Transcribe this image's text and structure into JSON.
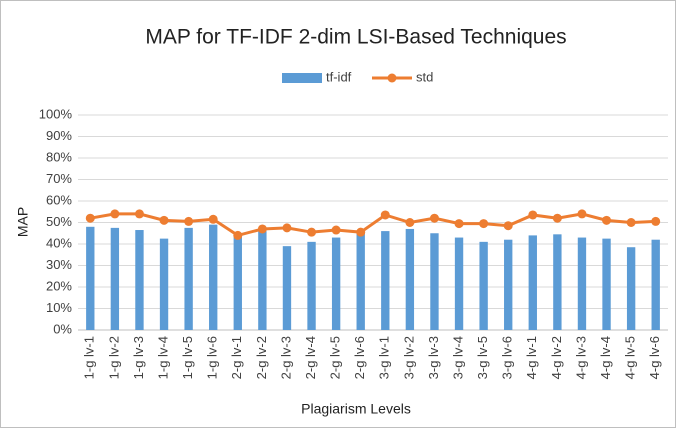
{
  "chart_data": {
    "type": "combo",
    "title": "MAP for TF-IDF 2-dim LSI-Based Techniques",
    "x_label": "Plagiarism Levels",
    "y_label": "MAP",
    "categories": [
      "1-g lv-1",
      "1-g lv-2",
      "1-g lv-3",
      "1-g lv-4",
      "1-g lv-5",
      "1-g lv-6",
      "2-g lv-1",
      "2-g lv-2",
      "2-g lv-3",
      "2-g lv-4",
      "2-g lv-5",
      "2-g lv-6",
      "3-g lv-1",
      "3-g lv-2",
      "3-g lv-3",
      "3-g lv-4",
      "3-g lv-5",
      "3-g lv-6",
      "4-g lv-1",
      "4-g lv-2",
      "4-g lv-3",
      "4-g lv-4",
      "4-g lv-5",
      "4-g lv-6"
    ],
    "series": [
      {
        "name": "tf-idf",
        "type": "bar",
        "color": "#5b9bd5",
        "values": [
          48,
          47.5,
          46.5,
          42.5,
          47.5,
          49,
          44,
          46,
          39,
          41,
          43,
          45,
          46,
          47,
          45,
          43,
          41,
          42,
          44,
          44.5,
          43,
          42.5,
          38.5,
          42
        ]
      },
      {
        "name": "std",
        "type": "line",
        "color": "#ed7d31",
        "values": [
          52,
          54,
          54,
          51,
          50.5,
          51.5,
          44,
          47,
          47.5,
          45.5,
          46.5,
          45.5,
          53.5,
          50,
          52,
          49.5,
          49.5,
          48.5,
          53.5,
          52,
          54,
          51,
          50,
          50.5
        ]
      }
    ],
    "ylim": [
      0,
      100
    ],
    "yticks": [
      {
        "value": 0,
        "label": "0%"
      },
      {
        "value": 10,
        "label": "10%"
      },
      {
        "value": 20,
        "label": "20%"
      },
      {
        "value": 30,
        "label": "30%"
      },
      {
        "value": 40,
        "label": "40%"
      },
      {
        "value": 50,
        "label": "50%"
      },
      {
        "value": 60,
        "label": "60%"
      },
      {
        "value": 70,
        "label": "70%"
      },
      {
        "value": 80,
        "label": "80%"
      },
      {
        "value": 90,
        "label": "90%"
      },
      {
        "value": 100,
        "label": "100%"
      }
    ],
    "grid": true,
    "legend": "top"
  }
}
